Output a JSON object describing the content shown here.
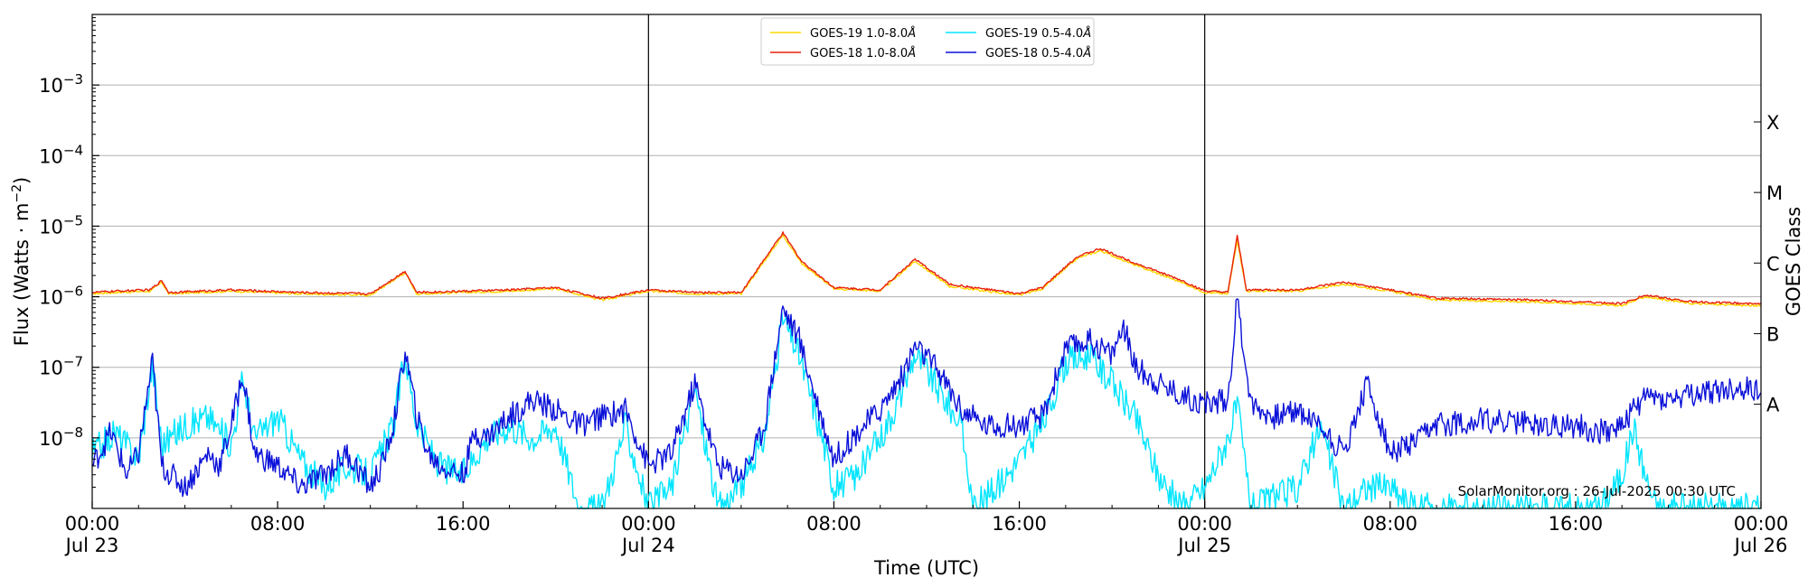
{
  "chart_data": {
    "type": "line",
    "ylabel_main": "Flux (Watts · m",
    "ylabel_exp": "−2",
    "ylabel_close": ")",
    "xlabel": "Time (UTC)",
    "right_label": "GOES Class",
    "yscale": "log",
    "ylim": [
      1e-09,
      0.01
    ],
    "y_ticks": [
      {
        "value": 1e-08,
        "base": "10",
        "exp": "−8"
      },
      {
        "value": 1e-07,
        "base": "10",
        "exp": "−7"
      },
      {
        "value": 1e-06,
        "base": "10",
        "exp": "−6"
      },
      {
        "value": 1e-05,
        "base": "10",
        "exp": "−5"
      },
      {
        "value": 0.0001,
        "base": "10",
        "exp": "−4"
      },
      {
        "value": 0.001,
        "base": "10",
        "exp": "−3"
      }
    ],
    "xlim_hours": [
      0,
      72
    ],
    "x_ticks": [
      {
        "hour": 0,
        "line1": "00:00",
        "line2": "Jul 23"
      },
      {
        "hour": 8,
        "line1": "08:00",
        "line2": ""
      },
      {
        "hour": 16,
        "line1": "16:00",
        "line2": ""
      },
      {
        "hour": 24,
        "line1": "00:00",
        "line2": "Jul 24"
      },
      {
        "hour": 32,
        "line1": "08:00",
        "line2": ""
      },
      {
        "hour": 40,
        "line1": "16:00",
        "line2": ""
      },
      {
        "hour": 48,
        "line1": "00:00",
        "line2": "Jul 25"
      },
      {
        "hour": 56,
        "line1": "08:00",
        "line2": ""
      },
      {
        "hour": 64,
        "line1": "16:00",
        "line2": ""
      },
      {
        "hour": 72,
        "line1": "00:00",
        "line2": "Jul 26"
      }
    ],
    "day_boundaries": [
      24,
      48
    ],
    "goes_classes": [
      {
        "label": "A",
        "value": 3e-08
      },
      {
        "label": "B",
        "value": 3e-07
      },
      {
        "label": "C",
        "value": 3e-06
      },
      {
        "label": "M",
        "value": 3e-05
      },
      {
        "label": "X",
        "value": 0.0003
      }
    ],
    "grid": "horizontal",
    "legend_position": "top-center",
    "watermark": "SolarMonitor.org : 26-Jul-2025 00:30 UTC",
    "series": [
      {
        "name": "GOES-19 1.0-8.0",
        "name_unit": "Å",
        "color": "#FFD700",
        "points": [
          [
            0,
            1.1e-06
          ],
          [
            1,
            1.15e-06
          ],
          [
            2.5,
            1.2e-06
          ],
          [
            3,
            1.6e-06
          ],
          [
            3.3,
            1.1e-06
          ],
          [
            6,
            1.2e-06
          ],
          [
            9,
            1.1e-06
          ],
          [
            12,
            1.05e-06
          ],
          [
            13.5,
            2.2e-06
          ],
          [
            14,
            1.1e-06
          ],
          [
            18,
            1.2e-06
          ],
          [
            20,
            1.3e-06
          ],
          [
            22,
            9e-07
          ],
          [
            24,
            1.2e-06
          ],
          [
            26,
            1.1e-06
          ],
          [
            28,
            1.1e-06
          ],
          [
            29.8,
            7.5e-06
          ],
          [
            30.6,
            3e-06
          ],
          [
            32,
            1.3e-06
          ],
          [
            34,
            1.2e-06
          ],
          [
            35.5,
            3.2e-06
          ],
          [
            37,
            1.4e-06
          ],
          [
            40,
            1.05e-06
          ],
          [
            41,
            1.3e-06
          ],
          [
            42.5,
            3.5e-06
          ],
          [
            43.5,
            4.5e-06
          ],
          [
            45,
            2.8e-06
          ],
          [
            47,
            1.6e-06
          ],
          [
            48,
            1.15e-06
          ],
          [
            49,
            1.1e-06
          ],
          [
            49.4,
            6.5e-06
          ],
          [
            49.8,
            1.2e-06
          ],
          [
            52,
            1.2e-06
          ],
          [
            54,
            1.5e-06
          ],
          [
            56,
            1.2e-06
          ],
          [
            58,
            9e-07
          ],
          [
            62,
            8.5e-07
          ],
          [
            64,
            8e-07
          ],
          [
            66,
            7.5e-07
          ],
          [
            67,
            1e-06
          ],
          [
            69,
            8e-07
          ],
          [
            72,
            7.4e-07
          ]
        ]
      },
      {
        "name": "GOES-18 1.0-8.0",
        "name_unit": "Å",
        "color": "#E8200C",
        "points": [
          [
            0,
            1.15e-06
          ],
          [
            1,
            1.2e-06
          ],
          [
            2.5,
            1.25e-06
          ],
          [
            3,
            1.7e-06
          ],
          [
            3.3,
            1.15e-06
          ],
          [
            6,
            1.25e-06
          ],
          [
            9,
            1.15e-06
          ],
          [
            12,
            1.1e-06
          ],
          [
            13.5,
            2.3e-06
          ],
          [
            14,
            1.15e-06
          ],
          [
            18,
            1.25e-06
          ],
          [
            20,
            1.35e-06
          ],
          [
            22,
            9.5e-07
          ],
          [
            24,
            1.25e-06
          ],
          [
            26,
            1.15e-06
          ],
          [
            28,
            1.15e-06
          ],
          [
            29.8,
            8e-06
          ],
          [
            30.6,
            3.2e-06
          ],
          [
            32,
            1.35e-06
          ],
          [
            34,
            1.25e-06
          ],
          [
            35.5,
            3.4e-06
          ],
          [
            37,
            1.5e-06
          ],
          [
            40,
            1.1e-06
          ],
          [
            41,
            1.35e-06
          ],
          [
            42.5,
            3.7e-06
          ],
          [
            43.5,
            4.8e-06
          ],
          [
            45,
            3e-06
          ],
          [
            47,
            1.7e-06
          ],
          [
            48,
            1.2e-06
          ],
          [
            49,
            1.15e-06
          ],
          [
            49.4,
            7.2e-06
          ],
          [
            49.8,
            1.25e-06
          ],
          [
            52,
            1.25e-06
          ],
          [
            54,
            1.6e-06
          ],
          [
            56,
            1.25e-06
          ],
          [
            58,
            9.5e-07
          ],
          [
            62,
            9e-07
          ],
          [
            64,
            8.5e-07
          ],
          [
            66,
            8e-07
          ],
          [
            67,
            1.05e-06
          ],
          [
            69,
            8.5e-07
          ],
          [
            72,
            7.9e-07
          ]
        ]
      },
      {
        "name": "GOES-19 0.5-4.0",
        "name_unit": "Å",
        "color": "#00E5FF",
        "points": [
          [
            0,
            6e-09
          ],
          [
            1,
            1.2e-08
          ],
          [
            2,
            5e-09
          ],
          [
            2.6,
            1.1e-07
          ],
          [
            3,
            8e-09
          ],
          [
            4,
            1.5e-08
          ],
          [
            5,
            2e-08
          ],
          [
            6,
            8e-09
          ],
          [
            6.5,
            7e-08
          ],
          [
            7,
            1e-08
          ],
          [
            8,
            2e-08
          ],
          [
            9,
            5e-09
          ],
          [
            10,
            2e-09
          ],
          [
            11,
            4e-09
          ],
          [
            12,
            3e-09
          ],
          [
            13,
            1.5e-08
          ],
          [
            13.5,
            1.6e-07
          ],
          [
            14,
            1.5e-08
          ],
          [
            15,
            4e-09
          ],
          [
            16,
            3e-09
          ],
          [
            17,
            1e-08
          ],
          [
            18,
            1.5e-08
          ],
          [
            19,
            1e-08
          ],
          [
            20,
            1.5e-08
          ],
          [
            21,
            1e-09
          ],
          [
            22,
            1e-09
          ],
          [
            23,
            1.5e-08
          ],
          [
            24,
            1e-09
          ],
          [
            25,
            2e-09
          ],
          [
            26,
            5e-08
          ],
          [
            27,
            1e-09
          ],
          [
            28,
            2e-09
          ],
          [
            29,
            1e-08
          ],
          [
            29.8,
            5e-07
          ],
          [
            30.5,
            1.5e-07
          ],
          [
            31.5,
            1e-08
          ],
          [
            32,
            2e-09
          ],
          [
            33,
            3e-09
          ],
          [
            34,
            1e-08
          ],
          [
            35,
            5e-08
          ],
          [
            35.5,
            1.6e-07
          ],
          [
            36.5,
            5e-08
          ],
          [
            37.5,
            1.5e-08
          ],
          [
            38,
            1e-09
          ],
          [
            39,
            2e-09
          ],
          [
            40,
            5e-09
          ],
          [
            41,
            1.5e-08
          ],
          [
            42,
            1.2e-07
          ],
          [
            43,
            1.5e-07
          ],
          [
            44,
            6e-08
          ],
          [
            45,
            2e-08
          ],
          [
            46,
            3e-09
          ],
          [
            47,
            1e-09
          ],
          [
            48,
            2e-09
          ],
          [
            49,
            1e-08
          ],
          [
            49.4,
            3e-08
          ],
          [
            50,
            1e-09
          ],
          [
            52,
            2e-09
          ],
          [
            53,
            1.5e-08
          ],
          [
            54,
            1e-09
          ],
          [
            55,
            2e-09
          ],
          [
            56,
            2e-09
          ],
          [
            57,
            1e-09
          ],
          [
            60,
            1e-09
          ],
          [
            63,
            1e-09
          ],
          [
            65,
            1e-09
          ],
          [
            66,
            3e-09
          ],
          [
            66.5,
            1.5e-08
          ],
          [
            67,
            3e-09
          ],
          [
            67.5,
            1e-09
          ],
          [
            72,
            1e-09
          ]
        ]
      },
      {
        "name": "GOES-18 0.5-4.0",
        "name_unit": "Å",
        "color": "#0A10D8",
        "points": [
          [
            0,
            4e-09
          ],
          [
            0.8,
            1.2e-08
          ],
          [
            1.5,
            3e-09
          ],
          [
            2,
            6e-09
          ],
          [
            2.6,
            1.2e-07
          ],
          [
            3,
            4e-09
          ],
          [
            4,
            2e-09
          ],
          [
            5,
            6e-09
          ],
          [
            5.5,
            4e-09
          ],
          [
            6,
            1.5e-08
          ],
          [
            6.5,
            8e-08
          ],
          [
            7,
            6e-09
          ],
          [
            8,
            4e-09
          ],
          [
            9,
            2e-09
          ],
          [
            10,
            3e-09
          ],
          [
            11,
            6e-09
          ],
          [
            12,
            2e-09
          ],
          [
            12.5,
            4e-09
          ],
          [
            13,
            1.5e-08
          ],
          [
            13.5,
            1.7e-07
          ],
          [
            14,
            2e-08
          ],
          [
            14.5,
            6e-09
          ],
          [
            15,
            4e-09
          ],
          [
            16,
            3e-09
          ],
          [
            16.5,
            1.2e-08
          ],
          [
            17,
            1e-08
          ],
          [
            18,
            2e-08
          ],
          [
            19,
            3.5e-08
          ],
          [
            20,
            2.5e-08
          ],
          [
            21,
            1.5e-08
          ],
          [
            22,
            2e-08
          ],
          [
            23,
            2.5e-08
          ],
          [
            24,
            4e-09
          ],
          [
            25,
            6e-09
          ],
          [
            26,
            6e-08
          ],
          [
            27,
            4e-09
          ],
          [
            28,
            3e-09
          ],
          [
            28.5,
            6e-09
          ],
          [
            29,
            1.5e-08
          ],
          [
            29.8,
            7e-07
          ],
          [
            30.5,
            2.5e-07
          ],
          [
            31.3,
            3e-08
          ],
          [
            32,
            5e-09
          ],
          [
            33,
            1.2e-08
          ],
          [
            34,
            2.5e-08
          ],
          [
            35,
            8e-08
          ],
          [
            35.5,
            2e-07
          ],
          [
            36.5,
            9e-08
          ],
          [
            37.5,
            2.5e-08
          ],
          [
            38.5,
            1.5e-08
          ],
          [
            40,
            1.5e-08
          ],
          [
            41,
            2e-08
          ],
          [
            42,
            1.8e-07
          ],
          [
            43,
            2.4e-07
          ],
          [
            44,
            1.5e-07
          ],
          [
            44.5,
            4e-07
          ],
          [
            45,
            1e-07
          ],
          [
            46,
            6e-08
          ],
          [
            47,
            4e-08
          ],
          [
            48,
            3e-08
          ],
          [
            49,
            3.5e-08
          ],
          [
            49.4,
            9e-07
          ],
          [
            50,
            3e-08
          ],
          [
            51,
            2e-08
          ],
          [
            52,
            2.5e-08
          ],
          [
            53,
            1.5e-08
          ],
          [
            54,
            6e-09
          ],
          [
            55,
            6e-08
          ],
          [
            56,
            6e-09
          ],
          [
            57,
            8e-09
          ],
          [
            58,
            1.5e-08
          ],
          [
            60,
            1.8e-08
          ],
          [
            62,
            1.6e-08
          ],
          [
            63,
            1.5e-08
          ],
          [
            64,
            1.5e-08
          ],
          [
            65,
            1.2e-08
          ],
          [
            66,
            1.5e-08
          ],
          [
            67,
            4e-08
          ],
          [
            68,
            3.5e-08
          ],
          [
            69,
            4e-08
          ],
          [
            70,
            4.5e-08
          ],
          [
            71,
            5e-08
          ],
          [
            72,
            5e-08
          ]
        ]
      }
    ]
  }
}
